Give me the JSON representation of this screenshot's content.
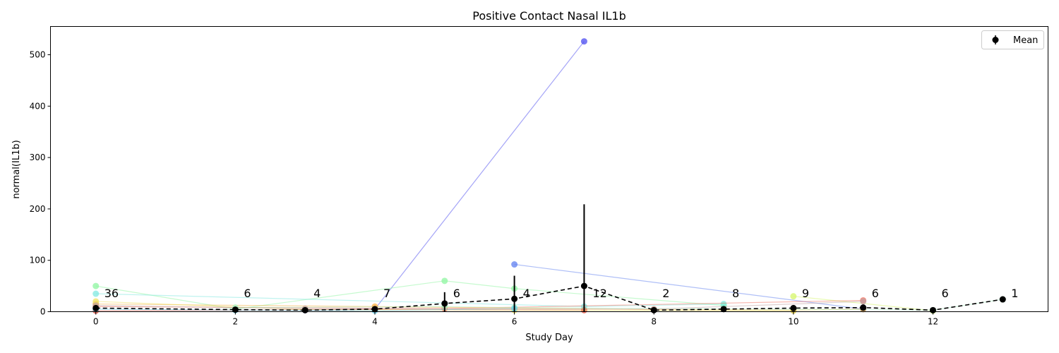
{
  "chart_data": {
    "type": "line",
    "title": "Positive Contact Nasal IL1b",
    "xlabel": "Study Day",
    "ylabel": "normal(IL1b)",
    "xlim": [
      -0.65,
      13.65
    ],
    "ylim": [
      0,
      555
    ],
    "x_ticks": [
      0,
      2,
      4,
      6,
      8,
      10,
      12
    ],
    "y_ticks": [
      0,
      100,
      200,
      300,
      400,
      500
    ],
    "grid": false,
    "legend": {
      "position": "top-right",
      "entries": [
        "Mean"
      ]
    },
    "mean": {
      "name": "Mean",
      "color": "#000000",
      "points": [
        {
          "x": 0,
          "y": 7,
          "err_lo": 3,
          "err_hi": 12
        },
        {
          "x": 2,
          "y": 4,
          "err_lo": 1,
          "err_hi": 7
        },
        {
          "x": 3,
          "y": 3,
          "err_lo": 1,
          "err_hi": 5
        },
        {
          "x": 4,
          "y": 5,
          "err_lo": 2,
          "err_hi": 8
        },
        {
          "x": 5,
          "y": 16,
          "err_lo": 0,
          "err_hi": 38
        },
        {
          "x": 6,
          "y": 25,
          "err_lo": 0,
          "err_hi": 70
        },
        {
          "x": 7,
          "y": 50,
          "err_lo": 0,
          "err_hi": 209
        },
        {
          "x": 8,
          "y": 3,
          "err_lo": 1,
          "err_hi": 5
        },
        {
          "x": 9,
          "y": 5,
          "err_lo": 2,
          "err_hi": 8
        },
        {
          "x": 10,
          "y": 7,
          "err_lo": 2,
          "err_hi": 12
        },
        {
          "x": 11,
          "y": 8,
          "err_lo": 2,
          "err_hi": 14
        },
        {
          "x": 12,
          "y": 3,
          "err_lo": 3,
          "err_hi": 3
        },
        {
          "x": 13,
          "y": 24,
          "err_lo": 24,
          "err_hi": 24
        }
      ]
    },
    "counts": [
      {
        "x": 0,
        "label": "36"
      },
      {
        "x": 2,
        "label": "6"
      },
      {
        "x": 3,
        "label": "4"
      },
      {
        "x": 4,
        "label": "7"
      },
      {
        "x": 5,
        "label": "6"
      },
      {
        "x": 6,
        "label": "4"
      },
      {
        "x": 7,
        "label": "12"
      },
      {
        "x": 8,
        "label": "2"
      },
      {
        "x": 9,
        "label": "8"
      },
      {
        "x": 10,
        "label": "9"
      },
      {
        "x": 11,
        "label": "6"
      },
      {
        "x": 12,
        "label": "6"
      },
      {
        "x": 13,
        "label": "1"
      }
    ],
    "count_label_y": 28,
    "subjects": [
      {
        "color": "#4b4bf0",
        "points": [
          [
            3,
            3
          ],
          [
            4,
            5
          ],
          [
            7,
            526
          ]
        ]
      },
      {
        "color": "#5f7ff0",
        "points": [
          [
            6,
            92
          ],
          [
            11,
            5
          ]
        ]
      },
      {
        "color": "#8df5a0",
        "points": [
          [
            0,
            50
          ],
          [
            2,
            5
          ],
          [
            5,
            60
          ],
          [
            6,
            45
          ],
          [
            9,
            12
          ]
        ]
      },
      {
        "color": "#80e8e0",
        "points": [
          [
            0,
            35
          ],
          [
            7,
            10
          ],
          [
            9,
            15
          ]
        ]
      },
      {
        "color": "#d6f56a",
        "points": [
          [
            10,
            30
          ],
          [
            12,
            2
          ]
        ]
      },
      {
        "color": "#f07060",
        "points": [
          [
            0,
            10
          ],
          [
            5,
            6
          ],
          [
            11,
            22
          ]
        ]
      },
      {
        "color": "#e64a3a",
        "points": [
          [
            0,
            2
          ],
          [
            4,
            4
          ],
          [
            7,
            3
          ]
        ]
      },
      {
        "color": "#f5b040",
        "points": [
          [
            0,
            15
          ],
          [
            4,
            10
          ],
          [
            8,
            4
          ],
          [
            10,
            3
          ],
          [
            11,
            5
          ]
        ]
      },
      {
        "color": "#f0e060",
        "points": [
          [
            0,
            20
          ],
          [
            3,
            4
          ],
          [
            6,
            3
          ],
          [
            10,
            2
          ]
        ]
      },
      {
        "color": "#a6f0c0",
        "points": [
          [
            2,
            8
          ],
          [
            5,
            10
          ],
          [
            6,
            8
          ],
          [
            12,
            3
          ],
          [
            13,
            24
          ]
        ]
      },
      {
        "color": "#60d0f0",
        "points": [
          [
            0,
            5
          ],
          [
            2,
            3
          ],
          [
            4,
            2
          ],
          [
            6,
            6
          ]
        ]
      },
      {
        "color": "#c0a0a0",
        "points": [
          [
            0,
            12
          ],
          [
            3,
            6
          ],
          [
            8,
            5
          ],
          [
            11,
            20
          ]
        ]
      }
    ]
  }
}
